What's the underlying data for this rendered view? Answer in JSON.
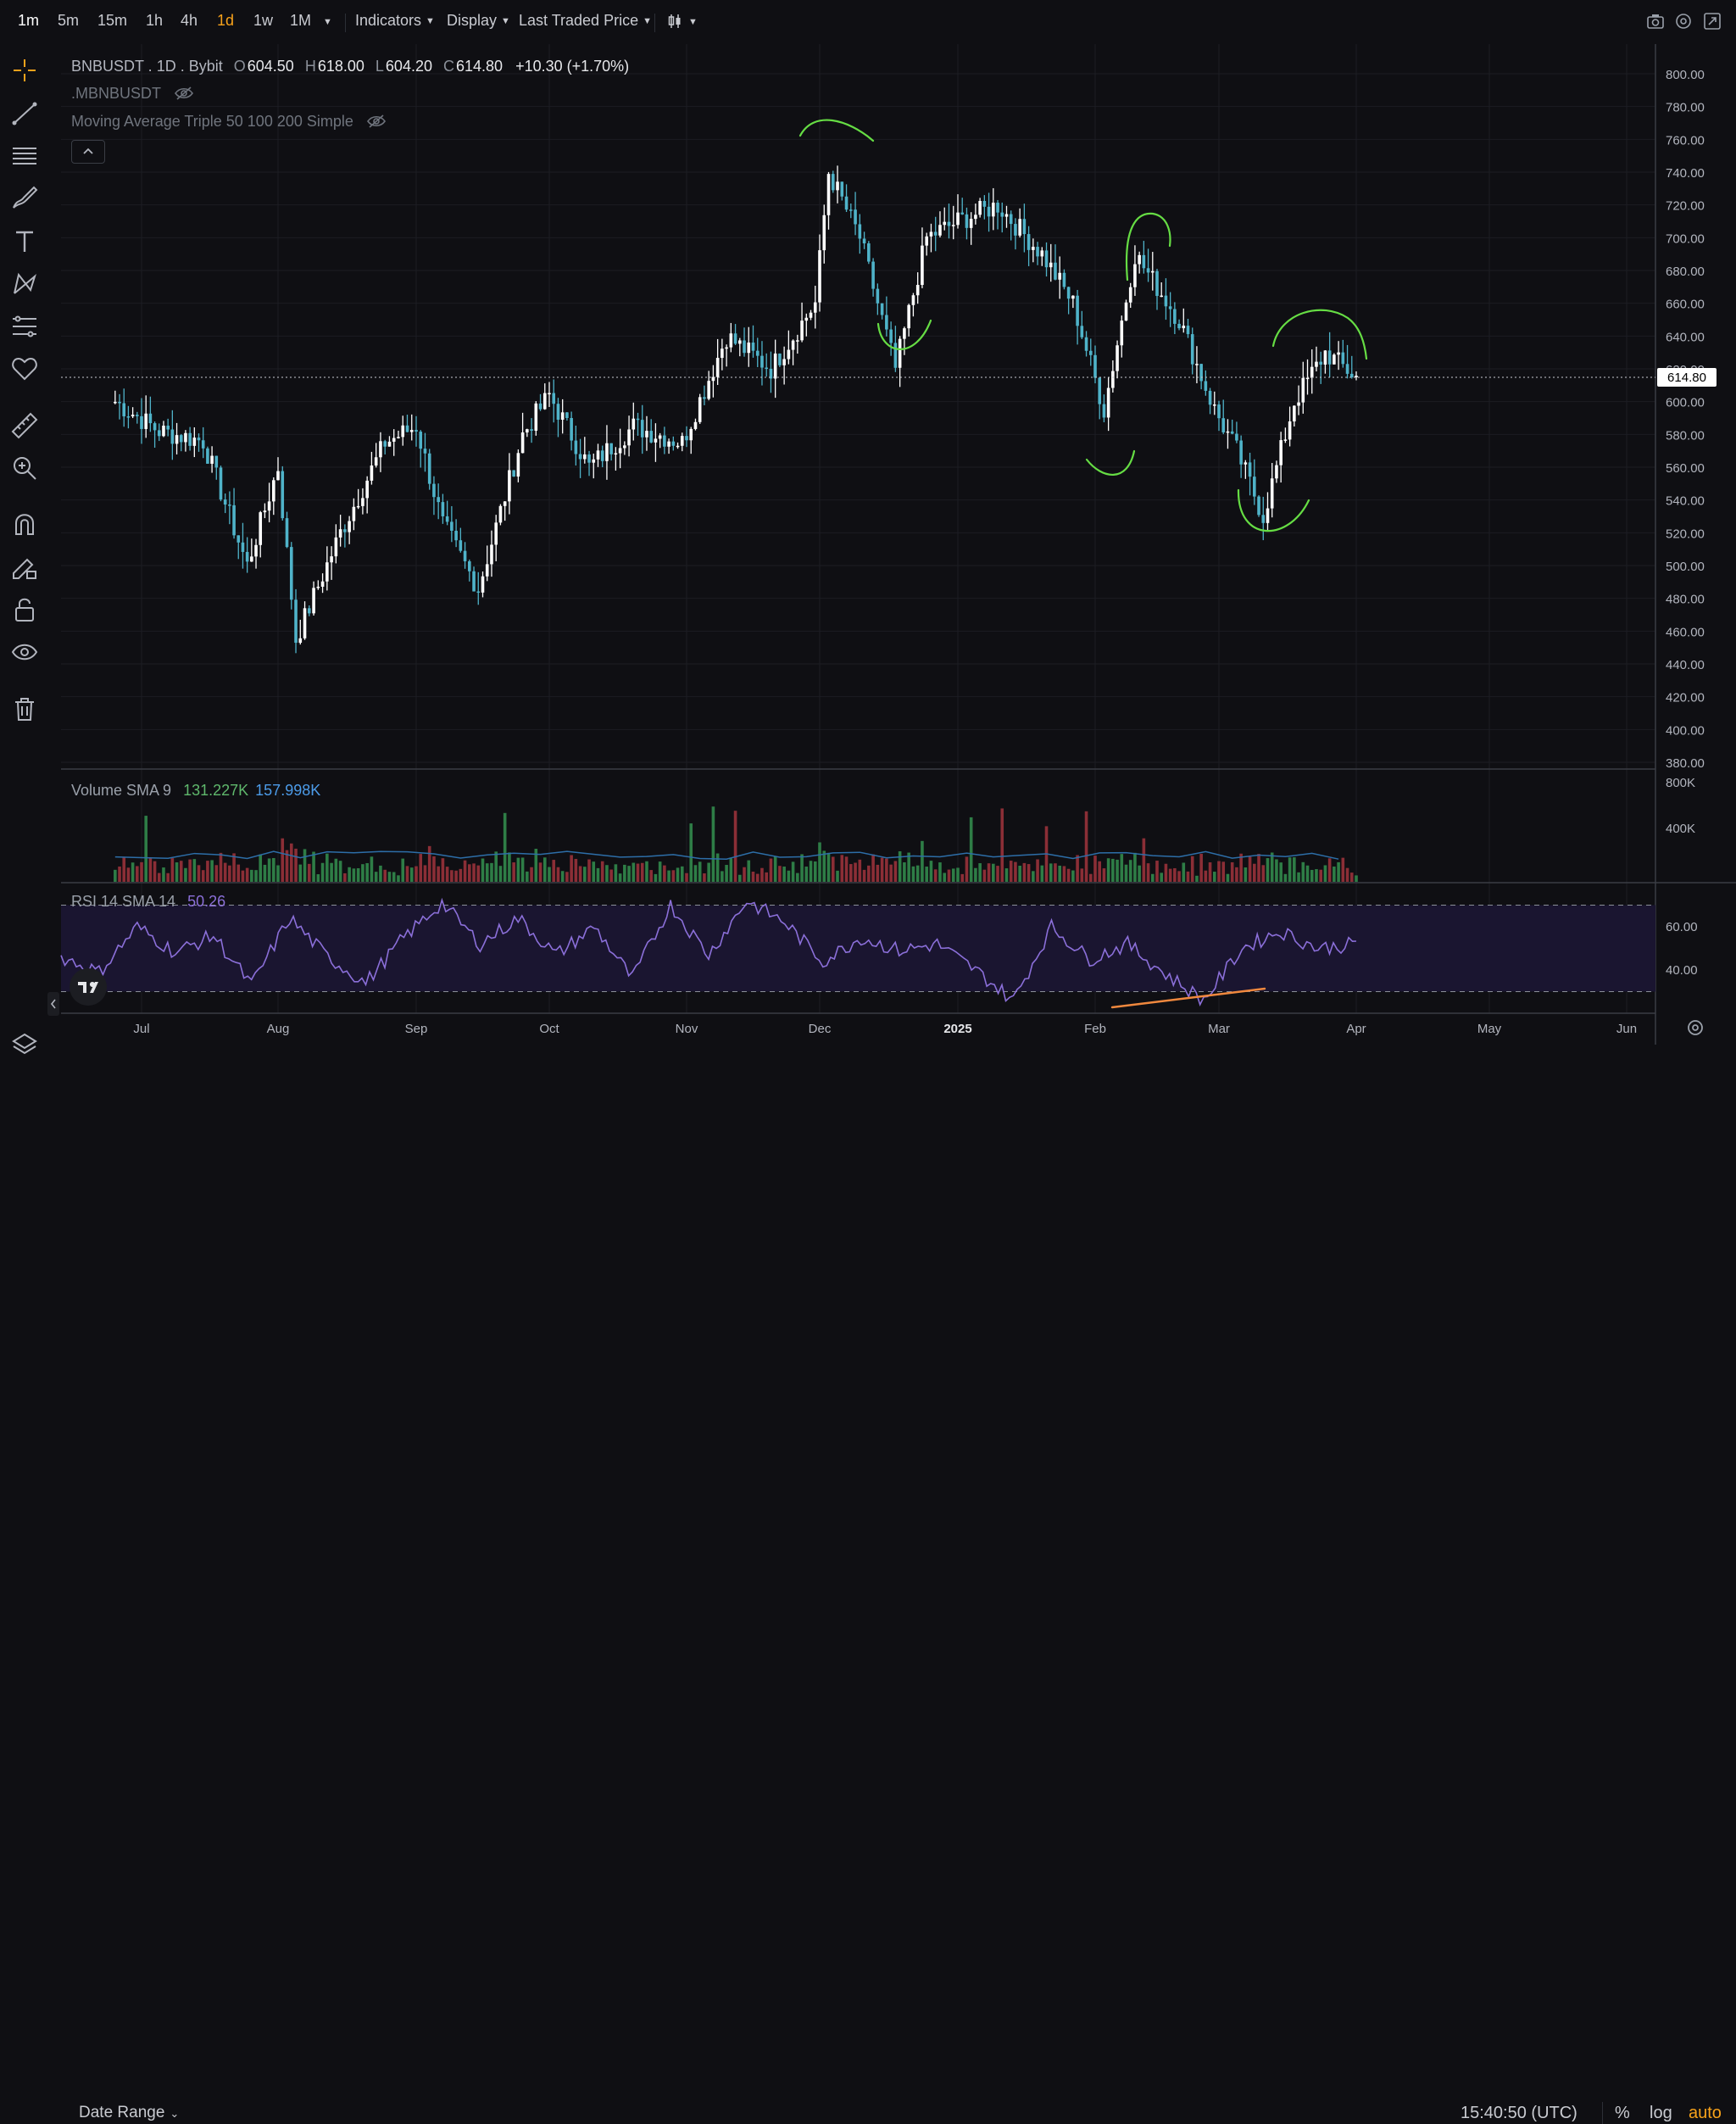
{
  "toolbar": {
    "timeframes": [
      "1m",
      "5m",
      "15m",
      "1h",
      "4h",
      "1d",
      "1w",
      "1M"
    ],
    "active_timeframe": "1m",
    "highlighted_timeframe": "1d",
    "indicators_label": "Indicators",
    "display_label": "Display",
    "price_source_label": "Last Traded Price"
  },
  "legend": {
    "symbol_line": "BNBUSDT . 1D . Bybit",
    "o_key": "O",
    "o_val": "604.50",
    "h_key": "H",
    "h_val": "618.00",
    "l_key": "L",
    "l_val": "604.20",
    "c_key": "C",
    "c_val": "614.80",
    "change": "+10.30 (+1.70%)",
    "compare_symbol": ".MBNBUSDT",
    "ma_label": "Moving Average Triple 50 100 200 Simple"
  },
  "volume_pane": {
    "label": "Volume SMA 9",
    "value1": "131.227K",
    "value2": "157.998K"
  },
  "rsi_pane": {
    "label": "RSI 14 SMA 14",
    "value": "50.26"
  },
  "bottom": {
    "date_range_label": "Date Range",
    "clock": "15:40:50 (UTC)",
    "percent_label": "%",
    "log_label": "log",
    "auto_label": "auto"
  },
  "colors": {
    "background": "#0f0f13",
    "candle_body": "#4fb3c9",
    "candle_up": "#ffffff",
    "annotation_green": "#66dd44",
    "annotation_orange": "#f0883e",
    "rsi_line": "#8b6fd9",
    "vol_up": "#2e7d46",
    "vol_down": "#8b2e36",
    "price_tag": "#ffffff"
  },
  "chart_data": {
    "type": "candlestick",
    "instrument": "BNBUSDT",
    "interval": "1D",
    "exchange": "Bybit",
    "x_tick_labels": [
      "Jul",
      "Aug",
      "Sep",
      "Oct",
      "Nov",
      "Dec",
      "2025",
      "Feb",
      "Mar",
      "Apr",
      "May",
      "Jun"
    ],
    "y_tick_labels": [
      "800.00",
      "780.00",
      "760.00",
      "740.00",
      "720.00",
      "700.00",
      "680.00",
      "660.00",
      "640.00",
      "620.00",
      "600.00",
      "580.00",
      "560.00",
      "540.00",
      "520.00",
      "500.00",
      "480.00",
      "460.00",
      "440.00",
      "420.00",
      "400.00",
      "380.00"
    ],
    "ylim": [
      380,
      800
    ],
    "last_price": 614.8,
    "last_price_label": "614.80",
    "last_price_line": "dotted",
    "grid": true,
    "close_series": {
      "dates": [
        "2024-06-25",
        "2024-07-05",
        "2024-07-15",
        "2024-07-25",
        "2024-08-01",
        "2024-08-05",
        "2024-08-15",
        "2024-08-25",
        "2024-09-01",
        "2024-09-07",
        "2024-09-15",
        "2024-09-25",
        "2024-10-01",
        "2024-10-10",
        "2024-10-20",
        "2024-10-31",
        "2024-11-10",
        "2024-11-20",
        "2024-11-30",
        "2024-12-03",
        "2024-12-10",
        "2024-12-18",
        "2024-12-25",
        "2025-01-01",
        "2025-01-10",
        "2025-01-20",
        "2025-01-27",
        "2025-02-03",
        "2025-02-10",
        "2025-02-20",
        "2025-02-28",
        "2025-03-05",
        "2025-03-11",
        "2025-03-18",
        "2025-03-25",
        "2025-04-01"
      ],
      "values": [
        600,
        582,
        576,
        500,
        560,
        455,
        520,
        575,
        585,
        525,
        486,
        580,
        604,
        560,
        585,
        575,
        640,
        620,
        660,
        740,
        700,
        620,
        700,
        710,
        720,
        690,
        660,
        595,
        690,
        650,
        595,
        570,
        530,
        600,
        630,
        615
      ]
    },
    "annotations": [
      "arc-top-dec",
      "arc-bottom-dec",
      "arc-top-feb",
      "arc-bottom-feb",
      "arc-bottom-mar",
      "arc-top-mar",
      "rsi-divergence-line"
    ],
    "panes": {
      "volume": {
        "label": "Volume SMA 9",
        "y_tick_labels": [
          "800K",
          "400K"
        ]
      },
      "rsi": {
        "label": "RSI 14 SMA 14",
        "value": "50.26",
        "y_tick_labels": [
          "60.00",
          "40.00"
        ],
        "bands": [
          70,
          30
        ],
        "close_series": {
          "values": [
            46,
            39,
            60,
            48,
            56,
            33,
            64,
            46,
            34,
            55,
            71,
            52,
            64,
            47,
            60,
            36,
            70,
            47,
            72,
            62,
            44,
            55,
            49,
            52,
            40,
            26,
            60,
            45,
            52,
            38,
            26,
            50,
            58,
            50,
            52
          ]
        }
      }
    }
  }
}
